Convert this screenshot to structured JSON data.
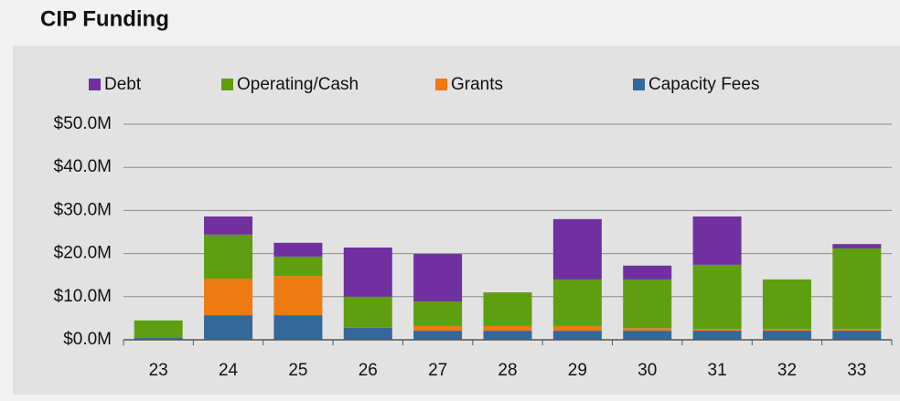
{
  "chart_data": {
    "type": "stacked_bar",
    "title": "CIP Funding",
    "categories": [
      "23",
      "24",
      "25",
      "26",
      "27",
      "28",
      "29",
      "30",
      "31",
      "32",
      "33"
    ],
    "series": [
      {
        "name": "Debt",
        "color": "#7030a0",
        "values": [
          0,
          4.2,
          3.2,
          11.4,
          11.0,
          0,
          14.0,
          3.2,
          11.2,
          0,
          1.0
        ]
      },
      {
        "name": "Operating/Cash",
        "color": "#5e9e10",
        "values": [
          4.0,
          10.2,
          4.5,
          7.2,
          5.7,
          7.8,
          10.8,
          11.3,
          14.9,
          11.5,
          18.7
        ]
      },
      {
        "name": "Grants",
        "color": "#ee7a12",
        "values": [
          0,
          8.5,
          9.1,
          0,
          1.1,
          1.1,
          1.1,
          0.6,
          0.4,
          0.4,
          0.4
        ]
      },
      {
        "name": "Capacity Fees",
        "color": "#34679a",
        "values": [
          0.5,
          5.7,
          5.7,
          2.8,
          2.1,
          2.1,
          2.1,
          2.1,
          2.1,
          2.1,
          2.1
        ]
      }
    ],
    "ylim": [
      0,
      50
    ],
    "yticks": [
      {
        "value": 0,
        "label": "$0.0M"
      },
      {
        "value": 10,
        "label": "$10.0M"
      },
      {
        "value": 20,
        "label": "$20.0M"
      },
      {
        "value": 30,
        "label": "$30.0M"
      },
      {
        "value": 40,
        "label": "$40.0M"
      },
      {
        "value": 50,
        "label": "$50.0M"
      }
    ],
    "grid": true,
    "legend": "top"
  }
}
